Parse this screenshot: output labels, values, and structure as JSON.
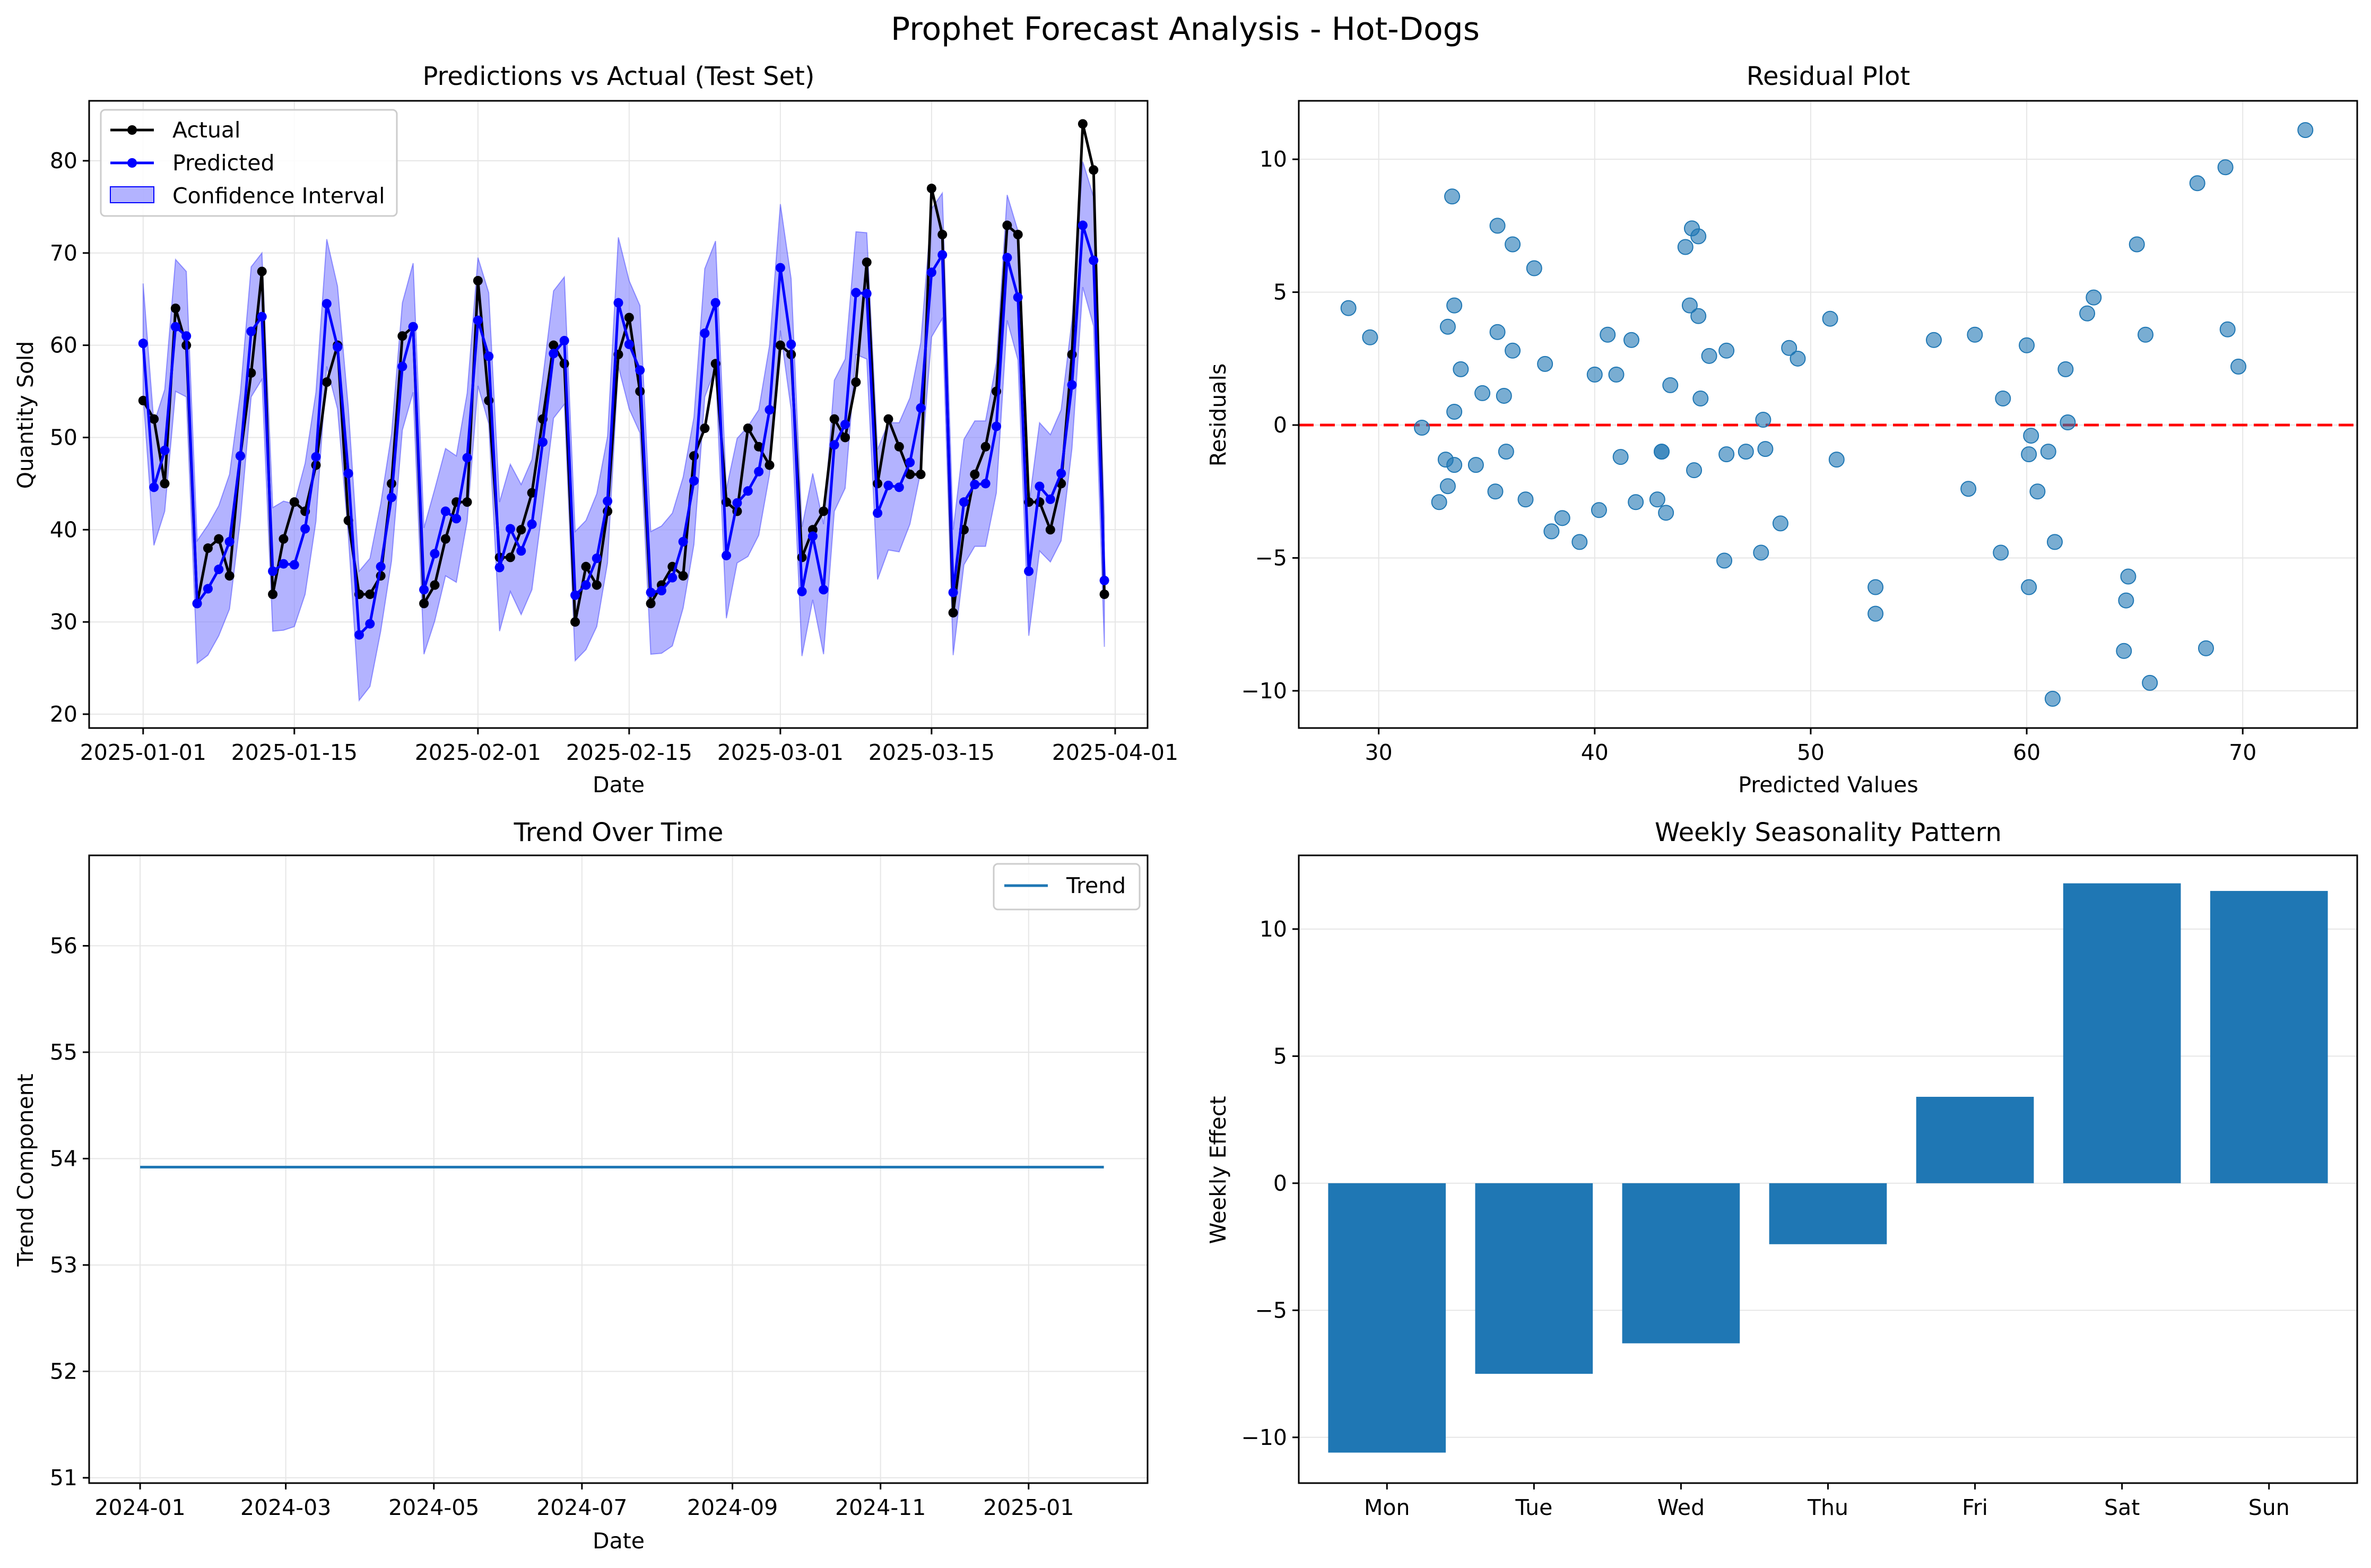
{
  "figure": {
    "title": "Prophet Forecast Analysis - Hot-Dogs"
  },
  "colors": {
    "actual": "#000000",
    "predicted": "#0000ff",
    "confidence_fill": "#8080ff",
    "residual_points": "#1f77b4",
    "zero_line": "#ff0000",
    "trend": "#1f77b4",
    "bars": "#1f77b4",
    "grid": "#e6e6e6"
  },
  "chart_data": [
    {
      "id": "predictions",
      "type": "line",
      "title": "Predictions vs Actual (Test Set)",
      "xlabel": "Date",
      "ylabel": "Quantity Sold",
      "x_start": "2025-01-01",
      "x_end": "2025-03-31",
      "xlim": [
        "2024-12-27",
        "2025-04-04"
      ],
      "ylim": [
        18.5,
        86.5
      ],
      "xticks": [
        "2025-01-01",
        "2025-01-15",
        "2025-02-01",
        "2025-02-15",
        "2025-03-01",
        "2025-03-15",
        "2025-04-01"
      ],
      "yticks": [
        20,
        30,
        40,
        50,
        60,
        70,
        80
      ],
      "grid": true,
      "legend_position": "top-left",
      "series": [
        {
          "name": "Actual",
          "values": [
            54,
            52,
            45,
            64,
            60,
            32,
            38,
            39,
            35,
            48,
            57,
            68,
            33,
            39,
            43,
            42,
            47,
            56,
            60,
            41,
            33,
            33,
            35,
            45,
            61,
            62,
            32,
            34,
            39,
            43,
            43,
            67,
            54,
            37,
            37,
            40,
            44,
            52,
            60,
            58,
            30,
            36,
            34,
            42,
            59,
            63,
            55,
            32,
            34,
            36,
            35,
            48,
            51,
            58,
            43,
            42,
            51,
            49,
            47,
            60,
            59,
            37,
            40,
            42,
            52,
            50,
            56,
            69,
            45,
            52,
            49,
            46,
            46,
            77,
            72,
            31,
            40,
            46,
            49,
            55,
            73,
            72,
            43,
            43,
            40,
            45,
            59,
            84,
            79,
            33
          ]
        },
        {
          "name": "Predicted",
          "values": [
            60.2,
            44.6,
            48.6,
            62.0,
            61.0,
            32.0,
            33.6,
            35.7,
            38.7,
            48.0,
            61.5,
            63.1,
            35.5,
            36.3,
            36.2,
            40.1,
            47.9,
            64.5,
            59.8,
            46.1,
            28.6,
            29.8,
            36.0,
            43.5,
            57.7,
            62.0,
            33.5,
            37.4,
            42.0,
            41.2,
            47.8,
            62.7,
            58.8,
            35.9,
            40.1,
            37.7,
            40.6,
            49.5,
            59.1,
            60.5,
            32.9,
            34.0,
            36.9,
            43.1,
            64.6,
            60.1,
            57.3,
            33.2,
            33.4,
            34.8,
            38.7,
            45.3,
            61.3,
            64.6,
            37.2,
            42.9,
            44.2,
            46.3,
            53.0,
            68.4,
            60.1,
            33.3,
            39.3,
            33.5,
            49.2,
            51.4,
            65.7,
            65.6,
            41.8,
            44.8,
            44.6,
            47.3,
            53.2,
            67.9,
            69.8,
            33.2,
            43.0,
            44.9,
            45.0,
            51.2,
            69.5,
            65.2,
            35.5,
            44.7,
            43.3,
            46.1,
            55.7,
            73.0,
            69.2,
            34.5
          ]
        }
      ],
      "confidence_interval": {
        "name": "Confidence Interval",
        "lower": [
          54.5,
          38.3,
          42.0,
          55.0,
          54.4,
          25.5,
          26.4,
          28.5,
          31.4,
          41.0,
          54.4,
          56.3,
          29.0,
          29.1,
          29.5,
          33.0,
          40.9,
          57.7,
          53.1,
          39.3,
          21.5,
          23.0,
          29.0,
          36.6,
          50.8,
          54.9,
          26.5,
          30.1,
          35.0,
          34.3,
          40.9,
          55.6,
          51.5,
          29.0,
          33.3,
          30.8,
          33.5,
          42.6,
          52.1,
          53.6,
          25.8,
          27.0,
          29.5,
          36.4,
          57.7,
          53.1,
          50.5,
          26.5,
          26.6,
          27.4,
          31.5,
          38.4,
          54.4,
          57.5,
          30.4,
          36.4,
          37.1,
          39.4,
          46.0,
          61.6,
          53.0,
          26.3,
          32.4,
          26.5,
          42.0,
          44.5,
          59.0,
          58.5,
          34.6,
          37.8,
          37.6,
          40.6,
          46.3,
          60.9,
          62.9,
          26.4,
          36.2,
          38.2,
          38.2,
          44.0,
          62.7,
          58.4,
          28.5,
          37.7,
          36.5,
          38.8,
          48.8,
          66.3,
          62.1,
          27.3
        ],
        "upper": [
          66.7,
          51.5,
          55.2,
          69.3,
          68.0,
          38.8,
          40.5,
          42.6,
          46.0,
          54.8,
          68.5,
          70.0,
          42.4,
          43.1,
          42.8,
          47.2,
          54.9,
          71.5,
          66.4,
          53.2,
          35.5,
          36.9,
          42.8,
          50.4,
          64.6,
          68.9,
          40.2,
          44.4,
          48.8,
          48.0,
          54.8,
          69.5,
          65.7,
          43.0,
          47.1,
          44.9,
          47.6,
          56.4,
          65.9,
          67.4,
          39.8,
          41.0,
          43.9,
          50.1,
          71.7,
          67.0,
          64.3,
          39.8,
          40.4,
          41.8,
          45.7,
          52.2,
          68.3,
          71.3,
          44.4,
          49.9,
          51.2,
          53.0,
          60.0,
          75.3,
          67.2,
          40.3,
          46.1,
          40.6,
          56.2,
          58.5,
          72.3,
          72.2,
          48.7,
          51.6,
          51.6,
          54.3,
          60.3,
          74.8,
          76.5,
          40.0,
          49.8,
          51.8,
          51.8,
          58.1,
          76.3,
          72.4,
          42.6,
          51.6,
          50.3,
          53.0,
          62.7,
          79.9,
          76.1,
          41.5
        ]
      }
    },
    {
      "id": "residuals",
      "type": "scatter",
      "title": "Residual Plot",
      "xlabel": "Predicted Values",
      "ylabel": "Residuals",
      "xlim": [
        26.3,
        75.3
      ],
      "ylim": [
        -11.4,
        12.2
      ],
      "xticks": [
        30,
        40,
        50,
        60,
        70
      ],
      "yticks": [
        -10,
        -5,
        0,
        5,
        10
      ],
      "yticklabels": [
        "−10",
        "−5",
        "0",
        "5",
        "10"
      ],
      "grid": true,
      "reference_line": {
        "y": 0,
        "style": "dashed"
      },
      "points": [
        [
          28.6,
          4.4
        ],
        [
          29.6,
          3.3
        ],
        [
          32.0,
          -0.1
        ],
        [
          32.8,
          -2.9
        ],
        [
          33.1,
          -1.3
        ],
        [
          33.2,
          -2.3
        ],
        [
          33.2,
          3.7
        ],
        [
          33.4,
          8.6
        ],
        [
          33.5,
          0.5
        ],
        [
          33.5,
          -1.5
        ],
        [
          33.5,
          4.5
        ],
        [
          33.8,
          2.1
        ],
        [
          34.5,
          -1.5
        ],
        [
          34.8,
          1.2
        ],
        [
          35.4,
          -2.5
        ],
        [
          35.5,
          7.5
        ],
        [
          35.5,
          3.5
        ],
        [
          35.8,
          1.1
        ],
        [
          35.9,
          -1.0
        ],
        [
          36.2,
          6.8
        ],
        [
          36.2,
          2.8
        ],
        [
          36.8,
          -2.8
        ],
        [
          37.2,
          5.9
        ],
        [
          37.7,
          2.3
        ],
        [
          38.0,
          -4.0
        ],
        [
          38.5,
          -3.5
        ],
        [
          39.3,
          -4.4
        ],
        [
          40.0,
          1.9
        ],
        [
          40.2,
          -3.2
        ],
        [
          40.6,
          3.4
        ],
        [
          41.0,
          1.9
        ],
        [
          41.2,
          -1.2
        ],
        [
          41.7,
          3.2
        ],
        [
          41.9,
          -2.9
        ],
        [
          42.9,
          -2.8
        ],
        [
          43.1,
          -1.0
        ],
        [
          43.1,
          -1.0
        ],
        [
          43.3,
          -3.3
        ],
        [
          43.5,
          1.5
        ],
        [
          44.2,
          6.7
        ],
        [
          44.4,
          4.5
        ],
        [
          44.5,
          7.4
        ],
        [
          44.6,
          -1.7
        ],
        [
          44.8,
          7.1
        ],
        [
          44.8,
          4.1
        ],
        [
          44.9,
          1.0
        ],
        [
          45.3,
          2.6
        ],
        [
          46.0,
          -5.1
        ],
        [
          46.1,
          2.8
        ],
        [
          46.1,
          -1.1
        ],
        [
          47.0,
          -1.0
        ],
        [
          47.7,
          -4.8
        ],
        [
          47.8,
          0.2
        ],
        [
          47.9,
          -0.9
        ],
        [
          48.6,
          -3.7
        ],
        [
          49.0,
          2.9
        ],
        [
          49.4,
          2.5
        ],
        [
          50.9,
          4.0
        ],
        [
          51.2,
          -1.3
        ],
        [
          53.0,
          -6.1
        ],
        [
          53.0,
          -7.1
        ],
        [
          55.7,
          3.2
        ],
        [
          57.3,
          -2.4
        ],
        [
          57.6,
          3.4
        ],
        [
          58.8,
          -4.8
        ],
        [
          58.9,
          1.0
        ],
        [
          60.0,
          3.0
        ],
        [
          60.1,
          -1.1
        ],
        [
          60.1,
          -6.1
        ],
        [
          60.2,
          -0.4
        ],
        [
          60.5,
          -2.5
        ],
        [
          61.0,
          -1.0
        ],
        [
          61.2,
          -10.3
        ],
        [
          61.3,
          -4.4
        ],
        [
          61.8,
          2.1
        ],
        [
          61.9,
          0.1
        ],
        [
          62.8,
          4.2
        ],
        [
          63.1,
          4.8
        ],
        [
          64.5,
          -8.5
        ],
        [
          64.6,
          -6.6
        ],
        [
          64.7,
          -5.7
        ],
        [
          65.1,
          6.8
        ],
        [
          65.5,
          3.4
        ],
        [
          65.7,
          -9.7
        ],
        [
          67.9,
          9.1
        ],
        [
          68.3,
          -8.4
        ],
        [
          69.2,
          9.7
        ],
        [
          69.3,
          3.6
        ],
        [
          69.8,
          2.2
        ],
        [
          72.9,
          11.1
        ]
      ]
    },
    {
      "id": "trend",
      "type": "line",
      "title": "Trend Over Time",
      "xlabel": "Date",
      "ylabel": "Trend Component",
      "xlim": [
        "2023-12-11",
        "2025-02-19"
      ],
      "ylim": [
        50.95,
        56.85
      ],
      "xticks": [
        "2024-01",
        "2024-03",
        "2024-05",
        "2024-07",
        "2024-09",
        "2024-11",
        "2025-01"
      ],
      "yticks": [
        51,
        52,
        53,
        54,
        55,
        56
      ],
      "grid": true,
      "legend_position": "top-right",
      "series": [
        {
          "name": "Trend",
          "x": [
            "2024-01-01",
            "2025-02-01"
          ],
          "values": [
            53.92,
            53.92
          ]
        }
      ]
    },
    {
      "id": "weekly",
      "type": "bar",
      "title": "Weekly Seasonality Pattern",
      "xlabel": "",
      "ylabel": "Weekly Effect",
      "categories": [
        "Mon",
        "Tue",
        "Wed",
        "Thu",
        "Fri",
        "Sat",
        "Sun"
      ],
      "values": [
        -10.6,
        -7.5,
        -6.3,
        -2.4,
        3.4,
        11.8,
        11.5
      ],
      "ylim": [
        -11.8,
        12.9
      ],
      "yticks": [
        -10,
        -5,
        0,
        5,
        10
      ],
      "yticklabels": [
        "−10",
        "−5",
        "0",
        "5",
        "10"
      ],
      "grid": true
    }
  ]
}
